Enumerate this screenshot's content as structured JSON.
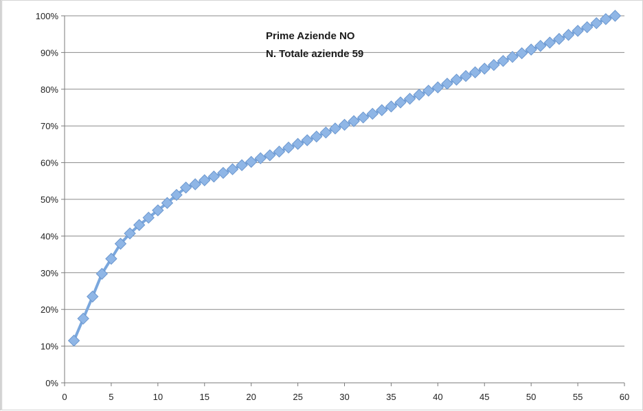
{
  "chart_data": {
    "type": "line",
    "title": "",
    "xlabel": "",
    "ylabel": "",
    "xlim": [
      0,
      60
    ],
    "ylim": [
      0,
      100
    ],
    "x_ticks": [
      0,
      5,
      10,
      15,
      20,
      25,
      30,
      35,
      40,
      45,
      50,
      55,
      60
    ],
    "y_ticks": [
      0,
      10,
      20,
      30,
      40,
      50,
      60,
      70,
      80,
      90,
      100
    ],
    "x_tick_labels": [
      "0",
      "5",
      "10",
      "15",
      "20",
      "25",
      "30",
      "35",
      "40",
      "45",
      "50",
      "55",
      "60"
    ],
    "y_tick_labels": [
      "0%",
      "10%",
      "20%",
      "30%",
      "40%",
      "50%",
      "60%",
      "70%",
      "80%",
      "90%",
      "100%"
    ],
    "grid": "horizontal",
    "legend": "none",
    "annotations": [
      "Prime Aziende NO",
      "N. Totale aziende 59"
    ],
    "series": [
      {
        "color": "#7aa7dd",
        "marker_color": "#8fb6e6",
        "marker": "diamond",
        "x": [
          1,
          2,
          3,
          4,
          5,
          6,
          7,
          8,
          9,
          10,
          11,
          12,
          13,
          14,
          15,
          16,
          17,
          18,
          19,
          20,
          21,
          22,
          23,
          24,
          25,
          26,
          27,
          28,
          29,
          30,
          31,
          32,
          33,
          34,
          35,
          36,
          37,
          38,
          39,
          40,
          41,
          42,
          43,
          44,
          45,
          46,
          47,
          48,
          49,
          50,
          51,
          52,
          53,
          54,
          55,
          56,
          57,
          58,
          59
        ],
        "values": [
          11.5,
          17.5,
          23.5,
          29.7,
          33.8,
          37.9,
          40.7,
          43.0,
          45.0,
          47.0,
          49.0,
          51.2,
          53.2,
          54.1,
          55.2,
          56.2,
          57.2,
          58.2,
          59.3,
          60.2,
          61.2,
          62.0,
          63.0,
          64.1,
          65.1,
          66.1,
          67.1,
          68.2,
          69.3,
          70.3,
          71.3,
          72.3,
          73.3,
          74.3,
          75.3,
          76.4,
          77.4,
          78.5,
          79.6,
          80.5,
          81.5,
          82.6,
          83.6,
          84.6,
          85.6,
          86.6,
          87.7,
          88.8,
          89.8,
          90.8,
          91.8,
          92.7,
          93.7,
          94.8,
          95.9,
          96.9,
          98.0,
          99.1,
          100.0
        ]
      }
    ]
  }
}
